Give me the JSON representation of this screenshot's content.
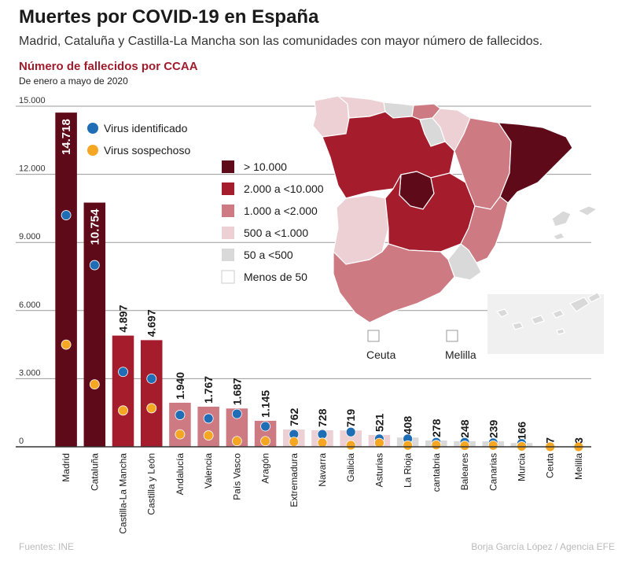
{
  "header": {
    "title": "Muertes por COVID-19 en España",
    "subtitle": "Madrid, Cataluña y Castilla-La Mancha son las comunidades con mayor número de fallecidos."
  },
  "chart_title": "Número de fallecidos por CCAA",
  "chart_subtitle": "De enero a mayo de 2020",
  "footer": {
    "source": "Fuentes: INE",
    "credit": "Borja García López / Agencia EFE"
  },
  "chart_data": {
    "type": "bar",
    "title": "Número de fallecidos por CCAA",
    "subtitle": "De enero a mayo de 2020",
    "ylim": [
      0,
      15000
    ],
    "yticks": [
      0,
      3000,
      6000,
      9000,
      12000,
      15000
    ],
    "ytick_labels": [
      "0",
      "3.000",
      "6.000",
      "9.000",
      "12.000",
      "15.000"
    ],
    "grid": "horizontal",
    "categories": [
      "Madrid",
      "Cataluña",
      "Castilla-La Mancha",
      "Castilla y León",
      "Andalucía",
      "Valencia",
      "País Vasco",
      "Aragón",
      "Extremadura",
      "Navarra",
      "Galicia",
      "Asturias",
      "La Rioja",
      "cantabria",
      "Baleares",
      "Canarias",
      "Murcia",
      "Ceuta",
      "Melilla"
    ],
    "values": [
      14718,
      10754,
      4897,
      4697,
      1940,
      1767,
      1687,
      1145,
      762,
      728,
      719,
      521,
      408,
      278,
      248,
      239,
      166,
      7,
      3
    ],
    "value_labels": [
      "14.718",
      "10.754",
      "4.897",
      "4.697",
      "1.940",
      "1.767",
      "1.687",
      "1.145",
      "762",
      "728",
      "719",
      "521",
      "408",
      "278",
      "248",
      "239",
      "166",
      "7",
      "3"
    ],
    "bar_classes": [
      ">10000",
      ">10000",
      "2000-10000",
      "2000-10000",
      "1000-2000",
      "1000-2000",
      "1000-2000",
      "1000-2000",
      "500-1000",
      "500-1000",
      "500-1000",
      "500-1000",
      "50-500",
      "50-500",
      "50-500",
      "50-500",
      "50-500",
      "<50",
      "<50"
    ],
    "series": [
      {
        "name": "Virus identificado",
        "color": "#1f6db5",
        "values": [
          10200,
          8000,
          3300,
          3000,
          1400,
          1250,
          1450,
          900,
          550,
          550,
          650,
          350,
          350,
          200,
          200,
          180,
          150,
          5,
          3
        ]
      },
      {
        "name": "Virus sospechoso",
        "color": "#f5a623",
        "values": [
          4500,
          2750,
          1600,
          1700,
          550,
          500,
          250,
          250,
          220,
          180,
          70,
          170,
          60,
          80,
          50,
          60,
          20,
          2,
          0
        ]
      }
    ],
    "legend_position": "top-left"
  },
  "color_scale": {
    "title": "",
    "items": [
      {
        "label": "> 10.000",
        "color": "#5e0a18"
      },
      {
        "label": "2.000 a <10.000",
        "color": "#a51d2d"
      },
      {
        "label": "1.000 a <2.000",
        "color": "#cd7a82"
      },
      {
        "label": "500 a <1.000",
        "color": "#ecd0d4"
      },
      {
        "label": "50 a <500",
        "color": "#d9d9d9"
      },
      {
        "label": "Menos de 50",
        "color": "#ffffff"
      }
    ]
  },
  "map": {
    "regions": [
      {
        "name": "Galicia",
        "color": "#ecd0d4"
      },
      {
        "name": "Asturias",
        "color": "#ecd0d4"
      },
      {
        "name": "cantabria",
        "color": "#d9d9d9"
      },
      {
        "name": "País Vasco",
        "color": "#cd7a82"
      },
      {
        "name": "Navarra",
        "color": "#ecd0d4"
      },
      {
        "name": "La Rioja",
        "color": "#d9d9d9"
      },
      {
        "name": "Aragón",
        "color": "#cd7a82"
      },
      {
        "name": "Cataluña",
        "color": "#5e0a18"
      },
      {
        "name": "Castilla y León",
        "color": "#a51d2d"
      },
      {
        "name": "Madrid",
        "color": "#5e0a18"
      },
      {
        "name": "Castilla-La Mancha",
        "color": "#a51d2d"
      },
      {
        "name": "Extremadura",
        "color": "#ecd0d4"
      },
      {
        "name": "Valencia",
        "color": "#cd7a82"
      },
      {
        "name": "Murcia",
        "color": "#d9d9d9"
      },
      {
        "name": "Andalucía",
        "color": "#cd7a82"
      },
      {
        "name": "Baleares",
        "color": "#d9d9d9"
      },
      {
        "name": "Canarias",
        "color": "#d9d9d9"
      }
    ],
    "ceuta_label": "Ceuta",
    "melilla_label": "Melilla"
  },
  "colors": {
    "grid": "#999999",
    "axis": "#333333",
    "text_dark": "#1a1a1a",
    "region_border": "#ffffff"
  }
}
